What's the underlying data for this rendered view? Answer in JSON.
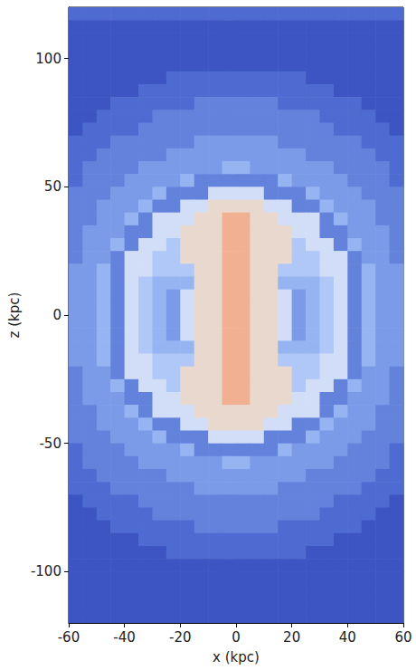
{
  "chart_data": {
    "type": "heatmap",
    "x_label": "x (kpc)",
    "y_label": "z (kpc)",
    "xlim": [
      -60,
      60
    ],
    "ylim": [
      -120,
      120
    ],
    "xticks": [
      -60,
      -40,
      -20,
      0,
      20,
      40,
      60
    ],
    "yticks": [
      -100,
      -50,
      0,
      50,
      100
    ],
    "color_range": [
      1,
      9
    ],
    "x": [
      -57.5,
      -52.5,
      -47.5,
      -42.5,
      -37.5,
      -32.5,
      -27.5,
      -22.5,
      -17.5,
      -12.5,
      -7.5,
      -2.5,
      2.5,
      7.5,
      12.5,
      17.5,
      22.5,
      27.5,
      32.5,
      37.5,
      42.5,
      47.5,
      52.5,
      57.5
    ],
    "y": [
      117.5,
      112.5,
      107.5,
      102.5,
      97.5,
      92.5,
      87.5,
      82.5,
      77.5,
      72.5,
      67.5,
      62.5,
      57.5,
      52.5,
      47.5,
      42.5,
      37.5,
      32.5,
      27.5,
      22.5,
      17.5,
      12.5,
      7.5,
      2.5,
      -2.5,
      -7.5,
      -12.5,
      -17.5,
      -22.5,
      -27.5,
      -32.5,
      -37.5,
      -42.5,
      -47.5,
      -52.5,
      -57.5,
      -62.5,
      -67.5,
      -72.5,
      -77.5,
      -82.5,
      -87.5,
      -92.5,
      -97.5,
      -102.5,
      -107.5,
      -112.5,
      -117.5
    ],
    "cells": [
      [
        2,
        2,
        2,
        2,
        2,
        2,
        2,
        2,
        2,
        2,
        2,
        2,
        2,
        2,
        2,
        2,
        2,
        2,
        2,
        2,
        2,
        2,
        2,
        2
      ],
      [
        1,
        1,
        1,
        1,
        1,
        1,
        1,
        1,
        1,
        1,
        1,
        1,
        1,
        1,
        1,
        1,
        1,
        1,
        1,
        1,
        1,
        1,
        1,
        1
      ],
      [
        1,
        1,
        1,
        1,
        1,
        1,
        1,
        1,
        1,
        1,
        1,
        1,
        1,
        1,
        1,
        1,
        1,
        1,
        1,
        1,
        1,
        1,
        1,
        1
      ],
      [
        1,
        1,
        1,
        1,
        1,
        1,
        1,
        1,
        1,
        1,
        1,
        1,
        1,
        1,
        1,
        1,
        1,
        1,
        1,
        1,
        1,
        1,
        1,
        1
      ],
      [
        1,
        1,
        1,
        1,
        1,
        1,
        1,
        1,
        1,
        1,
        1,
        1,
        1,
        1,
        1,
        1,
        1,
        1,
        1,
        1,
        1,
        1,
        1,
        1
      ],
      [
        1,
        1,
        1,
        1,
        1,
        1,
        1,
        2,
        2,
        2,
        2,
        2,
        2,
        2,
        2,
        2,
        2,
        1,
        1,
        1,
        1,
        1,
        1,
        1
      ],
      [
        1,
        1,
        1,
        1,
        1,
        2,
        2,
        2,
        2,
        2,
        2,
        2,
        2,
        2,
        2,
        2,
        2,
        2,
        2,
        1,
        1,
        1,
        1,
        1
      ],
      [
        1,
        1,
        1,
        2,
        2,
        2,
        2,
        2,
        2,
        3,
        3,
        3,
        3,
        3,
        3,
        2,
        2,
        2,
        2,
        2,
        2,
        1,
        1,
        1
      ],
      [
        1,
        1,
        2,
        2,
        2,
        2,
        3,
        3,
        3,
        3,
        3,
        3,
        3,
        3,
        3,
        3,
        3,
        3,
        2,
        2,
        2,
        2,
        1,
        1
      ],
      [
        1,
        2,
        2,
        2,
        2,
        3,
        3,
        3,
        3,
        3,
        3,
        3,
        3,
        3,
        3,
        3,
        3,
        3,
        3,
        2,
        2,
        2,
        2,
        1
      ],
      [
        2,
        2,
        2,
        3,
        3,
        3,
        3,
        3,
        3,
        4,
        4,
        4,
        4,
        4,
        4,
        3,
        3,
        3,
        3,
        3,
        3,
        2,
        2,
        2
      ],
      [
        2,
        2,
        3,
        3,
        3,
        3,
        3,
        4,
        4,
        4,
        4,
        4,
        4,
        4,
        4,
        4,
        4,
        3,
        3,
        3,
        3,
        3,
        2,
        2
      ],
      [
        2,
        3,
        3,
        3,
        3,
        4,
        4,
        4,
        4,
        4,
        4,
        5,
        5,
        4,
        4,
        4,
        4,
        4,
        4,
        3,
        3,
        3,
        3,
        2
      ],
      [
        2,
        3,
        3,
        3,
        4,
        4,
        4,
        4,
        5,
        3,
        3,
        3,
        3,
        3,
        3,
        5,
        4,
        4,
        4,
        4,
        3,
        3,
        3,
        2
      ],
      [
        3,
        3,
        3,
        4,
        4,
        4,
        5,
        3,
        3,
        3,
        7,
        7,
        7,
        7,
        3,
        3,
        3,
        5,
        4,
        4,
        4,
        3,
        3,
        3
      ],
      [
        3,
        3,
        4,
        4,
        4,
        5,
        3,
        3,
        7,
        7,
        8,
        8,
        8,
        8,
        7,
        7,
        3,
        3,
        5,
        4,
        4,
        4,
        3,
        3
      ],
      [
        3,
        3,
        4,
        4,
        5,
        3,
        7,
        7,
        7,
        8,
        8,
        9,
        9,
        8,
        8,
        7,
        7,
        7,
        3,
        5,
        4,
        4,
        3,
        3
      ],
      [
        3,
        4,
        4,
        4,
        3,
        3,
        7,
        7,
        8,
        8,
        8,
        9,
        9,
        8,
        8,
        8,
        7,
        7,
        3,
        3,
        4,
        4,
        4,
        3
      ],
      [
        3,
        4,
        4,
        5,
        3,
        7,
        7,
        6,
        8,
        8,
        8,
        9,
        9,
        8,
        8,
        8,
        6,
        7,
        7,
        3,
        5,
        4,
        4,
        3
      ],
      [
        3,
        4,
        4,
        3,
        7,
        7,
        6,
        6,
        8,
        8,
        8,
        9,
        9,
        8,
        8,
        8,
        6,
        6,
        7,
        7,
        3,
        4,
        4,
        3
      ],
      [
        4,
        4,
        5,
        3,
        7,
        7,
        6,
        6,
        6,
        8,
        8,
        9,
        9,
        8,
        8,
        6,
        6,
        6,
        7,
        7,
        3,
        5,
        4,
        4
      ],
      [
        4,
        4,
        5,
        3,
        7,
        6,
        5,
        5,
        5,
        8,
        8,
        9,
        9,
        8,
        8,
        5,
        5,
        5,
        6,
        7,
        3,
        5,
        4,
        4
      ],
      [
        4,
        4,
        5,
        3,
        7,
        6,
        5,
        4,
        7,
        8,
        8,
        9,
        9,
        8,
        8,
        7,
        4,
        5,
        6,
        7,
        3,
        5,
        4,
        4
      ],
      [
        4,
        4,
        5,
        3,
        7,
        6,
        5,
        4,
        7,
        8,
        8,
        9,
        9,
        8,
        8,
        7,
        4,
        5,
        6,
        7,
        3,
        5,
        4,
        4
      ],
      [
        4,
        4,
        5,
        3,
        7,
        6,
        5,
        4,
        7,
        8,
        8,
        9,
        9,
        8,
        8,
        7,
        4,
        5,
        6,
        7,
        3,
        5,
        4,
        4
      ],
      [
        4,
        4,
        5,
        3,
        7,
        6,
        5,
        4,
        7,
        8,
        8,
        9,
        9,
        8,
        8,
        7,
        4,
        5,
        6,
        7,
        3,
        5,
        4,
        4
      ],
      [
        4,
        4,
        5,
        3,
        7,
        6,
        5,
        5,
        5,
        8,
        8,
        9,
        9,
        8,
        8,
        5,
        5,
        5,
        6,
        7,
        3,
        5,
        4,
        4
      ],
      [
        4,
        4,
        5,
        3,
        7,
        7,
        6,
        6,
        6,
        8,
        8,
        9,
        9,
        8,
        8,
        6,
        6,
        6,
        7,
        7,
        3,
        5,
        4,
        4
      ],
      [
        3,
        4,
        4,
        3,
        7,
        7,
        6,
        6,
        8,
        8,
        8,
        9,
        9,
        8,
        8,
        8,
        6,
        6,
        7,
        7,
        3,
        4,
        4,
        3
      ],
      [
        3,
        4,
        4,
        5,
        3,
        7,
        7,
        6,
        8,
        8,
        8,
        9,
        9,
        8,
        8,
        8,
        6,
        7,
        7,
        3,
        5,
        4,
        4,
        3
      ],
      [
        3,
        4,
        4,
        4,
        3,
        3,
        7,
        7,
        8,
        8,
        8,
        9,
        9,
        8,
        8,
        8,
        7,
        7,
        3,
        3,
        4,
        4,
        4,
        3
      ],
      [
        3,
        3,
        4,
        4,
        5,
        3,
        7,
        7,
        7,
        8,
        8,
        8,
        8,
        8,
        8,
        7,
        7,
        7,
        3,
        5,
        4,
        4,
        3,
        3
      ],
      [
        3,
        3,
        4,
        4,
        4,
        5,
        3,
        3,
        7,
        7,
        8,
        8,
        8,
        8,
        7,
        7,
        3,
        3,
        5,
        4,
        4,
        4,
        3,
        3
      ],
      [
        3,
        3,
        3,
        4,
        4,
        4,
        5,
        3,
        3,
        3,
        7,
        7,
        7,
        7,
        3,
        3,
        3,
        5,
        4,
        4,
        4,
        3,
        3,
        3
      ],
      [
        2,
        3,
        3,
        3,
        4,
        4,
        4,
        4,
        5,
        3,
        3,
        3,
        3,
        3,
        3,
        5,
        4,
        4,
        4,
        4,
        3,
        3,
        3,
        2
      ],
      [
        2,
        3,
        3,
        3,
        3,
        4,
        4,
        4,
        4,
        4,
        4,
        5,
        5,
        4,
        4,
        4,
        4,
        4,
        4,
        3,
        3,
        3,
        3,
        2
      ],
      [
        2,
        2,
        3,
        3,
        3,
        3,
        3,
        4,
        4,
        4,
        4,
        4,
        4,
        4,
        4,
        4,
        4,
        3,
        3,
        3,
        3,
        3,
        2,
        2
      ],
      [
        2,
        2,
        2,
        3,
        3,
        3,
        3,
        3,
        3,
        4,
        4,
        4,
        4,
        4,
        4,
        3,
        3,
        3,
        3,
        3,
        3,
        2,
        2,
        2
      ],
      [
        1,
        2,
        2,
        2,
        2,
        3,
        3,
        3,
        3,
        3,
        3,
        3,
        3,
        3,
        3,
        3,
        3,
        3,
        3,
        2,
        2,
        2,
        2,
        1
      ],
      [
        1,
        1,
        2,
        2,
        2,
        2,
        3,
        3,
        3,
        3,
        3,
        3,
        3,
        3,
        3,
        3,
        3,
        3,
        2,
        2,
        2,
        2,
        1,
        1
      ],
      [
        1,
        1,
        1,
        2,
        2,
        2,
        2,
        2,
        2,
        3,
        3,
        3,
        3,
        3,
        3,
        2,
        2,
        2,
        2,
        2,
        2,
        1,
        1,
        1
      ],
      [
        1,
        1,
        1,
        1,
        1,
        2,
        2,
        2,
        2,
        2,
        2,
        2,
        2,
        2,
        2,
        2,
        2,
        2,
        2,
        1,
        1,
        1,
        1,
        1
      ],
      [
        1,
        1,
        1,
        1,
        1,
        1,
        1,
        2,
        2,
        2,
        2,
        2,
        2,
        2,
        2,
        2,
        2,
        1,
        1,
        1,
        1,
        1,
        1,
        1
      ],
      [
        1,
        1,
        1,
        1,
        1,
        1,
        1,
        1,
        1,
        1,
        1,
        1,
        1,
        1,
        1,
        1,
        1,
        1,
        1,
        1,
        1,
        1,
        1,
        1
      ],
      [
        1,
        1,
        1,
        1,
        1,
        1,
        1,
        1,
        1,
        1,
        1,
        1,
        1,
        1,
        1,
        1,
        1,
        1,
        1,
        1,
        1,
        1,
        1,
        1
      ],
      [
        1,
        1,
        1,
        1,
        1,
        1,
        1,
        1,
        1,
        1,
        1,
        1,
        1,
        1,
        1,
        1,
        1,
        1,
        1,
        1,
        1,
        1,
        1,
        1
      ],
      [
        1,
        1,
        1,
        1,
        1,
        1,
        1,
        1,
        1,
        1,
        1,
        1,
        1,
        1,
        1,
        1,
        1,
        1,
        1,
        1,
        1,
        1,
        1,
        1
      ],
      [
        1,
        1,
        1,
        1,
        1,
        1,
        1,
        1,
        1,
        1,
        1,
        1,
        1,
        1,
        1,
        1,
        1,
        1,
        1,
        1,
        1,
        1,
        1,
        1
      ]
    ]
  }
}
